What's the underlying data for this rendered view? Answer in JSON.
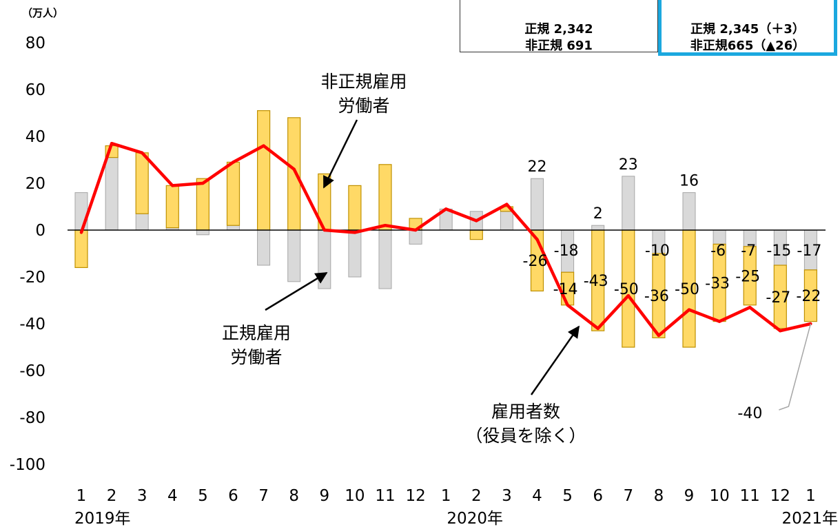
{
  "colors": {
    "regular": "#d9d9d9",
    "regular_border": "#a6a6a6",
    "nonregular": "#ffd966",
    "nonregular_border": "#bf9000",
    "total_line": "#ff0000"
  },
  "unit_label": "（万人）",
  "info_box_1": {
    "regular": "正規 2,342",
    "nonregular": "非正規 691"
  },
  "info_box_2": {
    "regular": "正規 2,345（＋3）",
    "nonregular": "非正規665（▲26）"
  },
  "annotations": {
    "nonregular": [
      "非正規雇用",
      "労働者"
    ],
    "regular": [
      "正規雇用",
      "労働者"
    ],
    "total": [
      "雇用者数",
      "（役員を除く）"
    ]
  },
  "chart_data": {
    "type": "bar",
    "stacked": true,
    "categories": [
      "1",
      "2",
      "3",
      "4",
      "5",
      "6",
      "7",
      "8",
      "9",
      "10",
      "11",
      "12",
      "1",
      "2",
      "3",
      "4",
      "5",
      "6",
      "7",
      "8",
      "9",
      "10",
      "11",
      "12",
      "1"
    ],
    "year_labels": [
      {
        "index": 0,
        "label": "2019年"
      },
      {
        "index": 12,
        "label": "2020年"
      },
      {
        "index": 24,
        "label": "2021年"
      }
    ],
    "ylim": [
      -100,
      80
    ],
    "yticks": [
      80,
      60,
      40,
      20,
      0,
      -20,
      -40,
      -60,
      -80,
      -100
    ],
    "series": [
      {
        "name": "正規雇用労働者",
        "type": "bar",
        "values": [
          16,
          31,
          7,
          1,
          -2,
          2,
          -15,
          -22,
          -25,
          -20,
          -25,
          -6,
          9,
          8,
          8,
          22,
          -18,
          2,
          23,
          -10,
          16,
          -6,
          -7,
          -15,
          -17
        ]
      },
      {
        "name": "非正規雇用労働者",
        "type": "bar",
        "values": [
          -16,
          5,
          26,
          18,
          22,
          27,
          51,
          48,
          24,
          19,
          28,
          5,
          0,
          -4,
          2,
          -26,
          -14,
          -43,
          -50,
          -36,
          -50,
          -33,
          -25,
          -27,
          -22
        ]
      },
      {
        "name": "雇用者数（役員を除く）",
        "type": "line",
        "values": [
          -1,
          37,
          33,
          19,
          20,
          29,
          36,
          26,
          0,
          -1,
          2,
          0,
          9,
          4,
          11,
          -4,
          -32,
          -42,
          -28,
          -45,
          -34,
          -39,
          -33,
          -43,
          -40
        ]
      }
    ],
    "data_labels": {
      "regular": [
        {
          "index": 15,
          "text": "22"
        },
        {
          "index": 16,
          "text": "-18"
        },
        {
          "index": 17,
          "text": "2"
        },
        {
          "index": 18,
          "text": "23"
        },
        {
          "index": 19,
          "text": "-10"
        },
        {
          "index": 20,
          "text": "16"
        },
        {
          "index": 21,
          "text": "-6"
        },
        {
          "index": 22,
          "text": "-7"
        },
        {
          "index": 23,
          "text": "-15"
        },
        {
          "index": 24,
          "text": "-17"
        }
      ],
      "nonregular": [
        {
          "index": 15,
          "text": "-26"
        },
        {
          "index": 16,
          "text": "-14"
        },
        {
          "index": 17,
          "text": "-43"
        },
        {
          "index": 18,
          "text": "-50"
        },
        {
          "index": 19,
          "text": "-36"
        },
        {
          "index": 20,
          "text": "-50"
        },
        {
          "index": 21,
          "text": "-33"
        },
        {
          "index": 22,
          "text": "-25"
        },
        {
          "index": 23,
          "text": "-27"
        },
        {
          "index": 24,
          "text": "-22"
        }
      ],
      "total": [
        {
          "index": 24,
          "text": "-40"
        }
      ]
    }
  }
}
